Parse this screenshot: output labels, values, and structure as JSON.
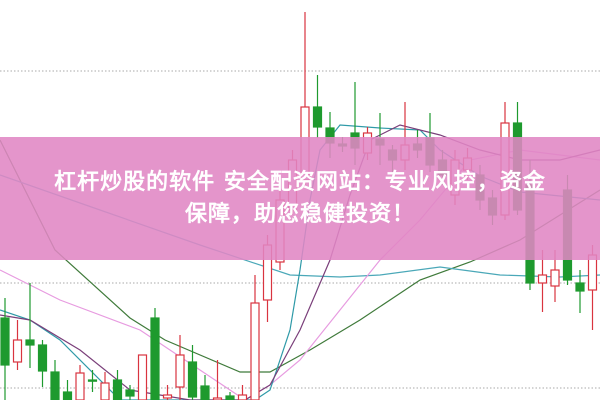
{
  "banner": {
    "line1": "杠杆炒股的软件 安全配资网站：专业风控，资金",
    "line2": "保障，助您稳健投资！",
    "color": "#e086c4"
  },
  "chart_data": {
    "type": "candlestick",
    "title": "",
    "xlabel": "",
    "ylabel": "",
    "ylim": [
      0,
      100
    ],
    "grid": "dotted horizontal",
    "colors": {
      "up": "#d9343f",
      "down": "#1e9a2e",
      "grid": "#aaaaaa"
    },
    "candles": [
      [
        20.5,
        25.5,
        0,
        8.75
      ],
      [
        9.5,
        20,
        7.5,
        15
      ],
      [
        15,
        29.25,
        8,
        13.75
      ],
      [
        13.75,
        15,
        3.25,
        7.25
      ],
      [
        7,
        10,
        0,
        0
      ],
      [
        2,
        5,
        0,
        0
      ],
      [
        0,
        8.75,
        0,
        6.75
      ],
      [
        5,
        7.5,
        2,
        4.75
      ],
      [
        0,
        7,
        0,
        4.25
      ],
      [
        5,
        7.5,
        0,
        0
      ],
      [
        2.5,
        3.75,
        0,
        1
      ],
      [
        0,
        11.25,
        0,
        11.25
      ],
      [
        20.5,
        23,
        0,
        0
      ],
      [
        0.5,
        3.75,
        0,
        1.25
      ],
      [
        3.25,
        16.25,
        0,
        11.25
      ],
      [
        9.5,
        13.75,
        0,
        0.75
      ],
      [
        3.5,
        6.25,
        0,
        0
      ],
      [
        0,
        10,
        0,
        0.5
      ],
      [
        1,
        2,
        0,
        0
      ],
      [
        0,
        3.75,
        0,
        1.25
      ],
      [
        0,
        31.25,
        0,
        24.25
      ],
      [
        25,
        41.25,
        19.5,
        38.75
      ],
      [
        34.5,
        52.5,
        32.5,
        50
      ],
      [
        47.5,
        62.5,
        46.25,
        60
      ],
      [
        55,
        97,
        53.75,
        73.25
      ],
      [
        73.25,
        81.25,
        65.5,
        68.25
      ],
      [
        68,
        72,
        60.5,
        64.25
      ],
      [
        64,
        65.75,
        62,
        63.5
      ],
      [
        66.75,
        79.5,
        58.75,
        63
      ],
      [
        61.75,
        68.25,
        60,
        66.75
      ],
      [
        65.25,
        71.75,
        58.75,
        63.75
      ],
      [
        62.5,
        63.75,
        56.25,
        60
      ],
      [
        60,
        74.5,
        57.5,
        63.75
      ],
      [
        64,
        67.5,
        60.5,
        62.5
      ],
      [
        65.5,
        71.75,
        57,
        58.75
      ],
      [
        60,
        62.5,
        53.75,
        56.25
      ],
      [
        51.25,
        62.5,
        48.75,
        60
      ],
      [
        57.5,
        63,
        55,
        60.5
      ],
      [
        56.25,
        58.75,
        47.5,
        50
      ],
      [
        50.5,
        52.5,
        43.75,
        46.25
      ],
      [
        46.25,
        74.5,
        45,
        69.25
      ],
      [
        69.25,
        74.5,
        46.25,
        47.5
      ],
      [
        53.75,
        60,
        27.5,
        29.25
      ],
      [
        29.25,
        37.5,
        22,
        31.25
      ],
      [
        28.5,
        37.5,
        24.5,
        32.5
      ],
      [
        52.5,
        56.25,
        28.75,
        30
      ],
      [
        29.25,
        32.5,
        21.75,
        27.25
      ],
      [
        27.5,
        38.75,
        17.5,
        36.25
      ]
    ],
    "candle_fields": [
      "open",
      "high",
      "low",
      "close"
    ],
    "moving_averages": [
      {
        "color": "#3f7a3a",
        "points": [
          [
            -0.4,
            65
          ],
          [
            4,
            37.5
          ],
          [
            10,
            20.5
          ],
          [
            12.8,
            15
          ],
          [
            18.8,
            7
          ],
          [
            21.2,
            7
          ],
          [
            24.4,
            12.5
          ],
          [
            28.4,
            20
          ],
          [
            33.2,
            30
          ],
          [
            37.2,
            34.5
          ],
          [
            41.2,
            40
          ],
          [
            44.4,
            46.25
          ],
          [
            47.6,
            52.5
          ]
        ]
      },
      {
        "color": "#4aa8b8",
        "points": [
          [
            -0.4,
            56.25
          ],
          [
            7.6,
            47.5
          ],
          [
            15.6,
            38.75
          ],
          [
            22.8,
            31.25
          ],
          [
            26.8,
            30.75
          ],
          [
            30,
            31.25
          ],
          [
            34.8,
            33.25
          ],
          [
            39.6,
            31.25
          ],
          [
            44.4,
            30.75
          ],
          [
            47.6,
            31.25
          ]
        ]
      },
      {
        "color": "#e79be0",
        "points": [
          [
            -0.4,
            32.5
          ],
          [
            4.4,
            25
          ],
          [
            10.8,
            17.5
          ],
          [
            19.2,
            0
          ],
          [
            21.2,
            3.75
          ],
          [
            23.6,
            10
          ],
          [
            30,
            35
          ],
          [
            33.2,
            45
          ],
          [
            37.2,
            60
          ],
          [
            41.2,
            62.5
          ],
          [
            47.6,
            60
          ]
        ]
      },
      {
        "color": "#2f9aa8",
        "points": [
          [
            -0.4,
            22.5
          ],
          [
            2,
            20
          ],
          [
            4.4,
            15
          ],
          [
            9.2,
            0
          ],
          [
            20,
            0
          ],
          [
            21.2,
            2.5
          ],
          [
            22.8,
            17.5
          ],
          [
            23.6,
            32.5
          ],
          [
            24.4,
            50
          ],
          [
            25.2,
            62.5
          ],
          [
            26.8,
            68.75
          ],
          [
            30,
            68
          ],
          [
            33.2,
            67.5
          ],
          [
            34.8,
            62.5
          ],
          [
            38,
            56
          ],
          [
            41.2,
            52
          ],
          [
            47.6,
            50
          ]
        ]
      },
      {
        "color": "#7a3f7a",
        "points": [
          [
            -0.4,
            21.25
          ],
          [
            2,
            20
          ],
          [
            6,
            12.5
          ],
          [
            10,
            2.5
          ],
          [
            14.8,
            0
          ],
          [
            19.2,
            0
          ],
          [
            21.2,
            3.75
          ],
          [
            23.6,
            17.5
          ],
          [
            26,
            35
          ],
          [
            27.6,
            51.25
          ],
          [
            29.2,
            65
          ],
          [
            31.6,
            68.75
          ],
          [
            34.8,
            66.25
          ],
          [
            38,
            62.5
          ],
          [
            41.2,
            60
          ],
          [
            44.4,
            60
          ],
          [
            47.6,
            62.5
          ]
        ]
      }
    ]
  }
}
